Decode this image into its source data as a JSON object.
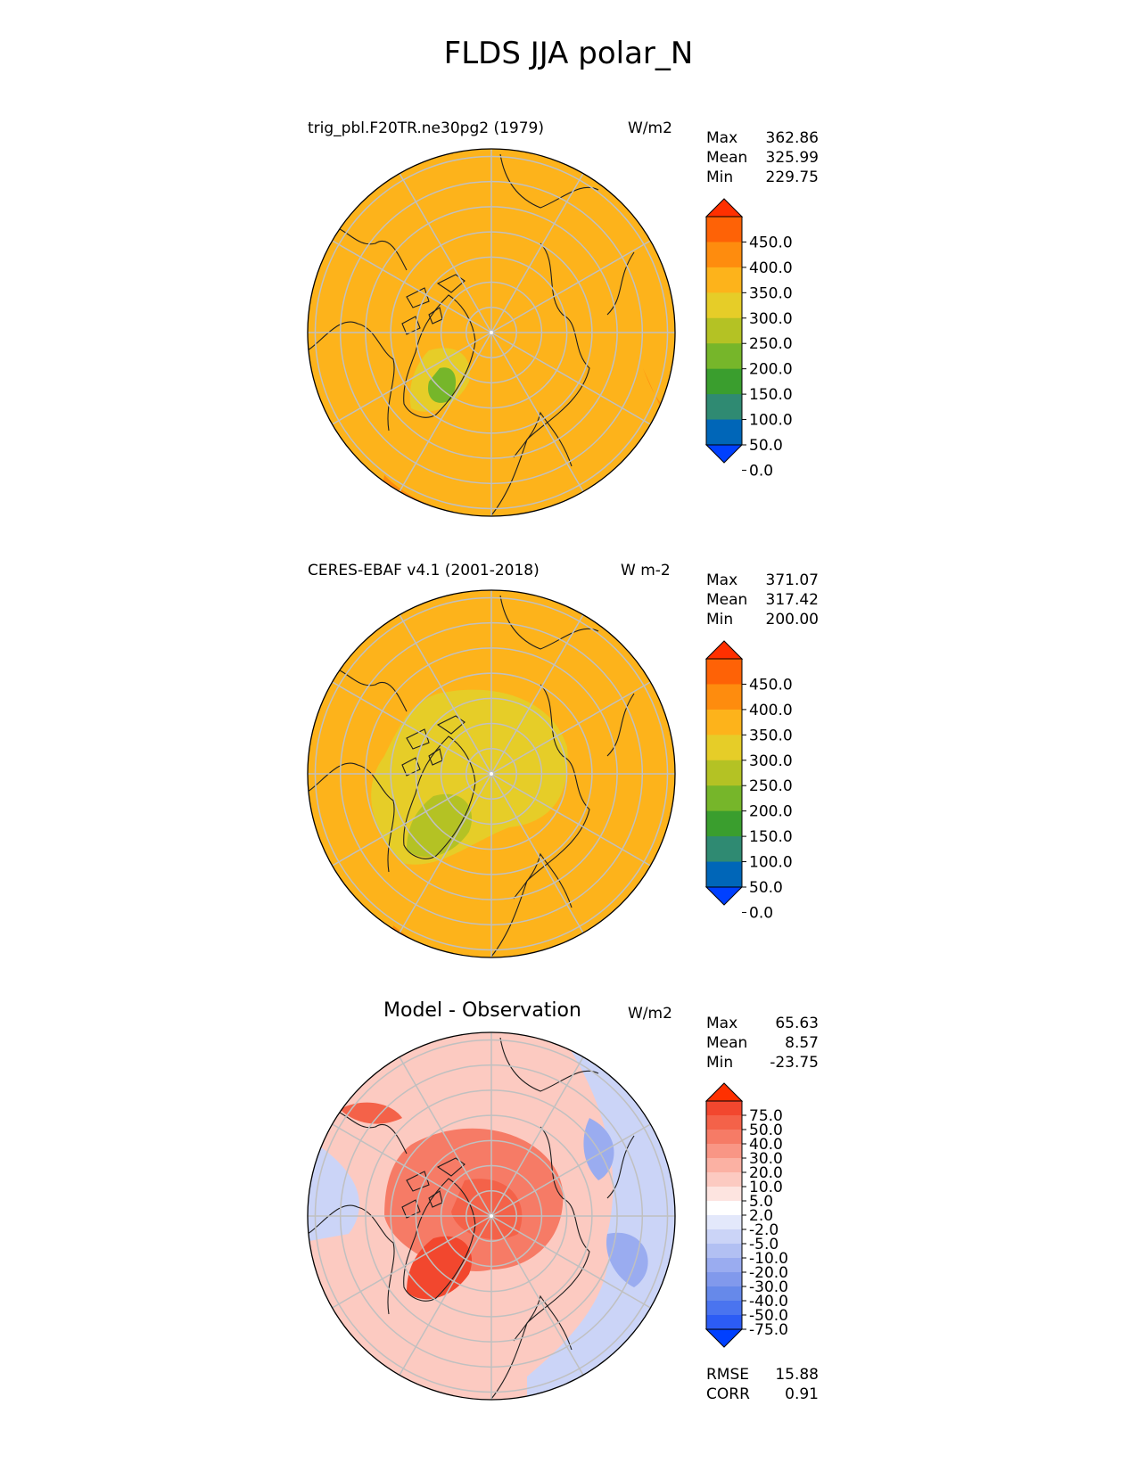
{
  "title": "FLDS JJA polar_N",
  "colors": {
    "abs_levels": [
      "#0040ff",
      "#0066b8",
      "#2f8a72",
      "#3a9e2e",
      "#76b62a",
      "#b4c224",
      "#e6cd28",
      "#fdb31b",
      "#fe8c0e",
      "#fe6206",
      "#ff3000"
    ],
    "diff_levels": [
      "#0040ff",
      "#2c5cf5",
      "#4a74ef",
      "#6689ea",
      "#8199ec",
      "#9aacf0",
      "#b2c0f3",
      "#cbd4f7",
      "#e3e8fb",
      "#ffffff",
      "#fde4e0",
      "#fccac1",
      "#fbb1a3",
      "#f99685",
      "#f67b66",
      "#f46249",
      "#f2472e",
      "#ff3000"
    ],
    "land_outline": "#1e1e1e",
    "grid": "#c0c0c0"
  },
  "panels": [
    {
      "title": "trig_pbl.F20TR.ne30pg2 (1979)",
      "units": "W/m2",
      "stats": [
        {
          "label": "Max",
          "value": "362.86"
        },
        {
          "label": "Mean",
          "value": "325.99"
        },
        {
          "label": "Min",
          "value": "229.75"
        }
      ],
      "colorbar_ticks": [
        "450.0",
        "400.0",
        "350.0",
        "300.0",
        "250.0",
        "200.0",
        "150.0",
        "100.0",
        "50.0",
        "0.0"
      ]
    },
    {
      "title": "CERES-EBAF v4.1 (2001-2018)",
      "units": "W m-2",
      "stats": [
        {
          "label": "Max",
          "value": "371.07"
        },
        {
          "label": "Mean",
          "value": "317.42"
        },
        {
          "label": "Min",
          "value": "200.00"
        }
      ],
      "colorbar_ticks": [
        "450.0",
        "400.0",
        "350.0",
        "300.0",
        "250.0",
        "200.0",
        "150.0",
        "100.0",
        "50.0",
        "0.0"
      ]
    },
    {
      "title": "Model - Observation",
      "units": "W/m2",
      "stats": [
        {
          "label": "Max",
          "value": "65.63"
        },
        {
          "label": "Mean",
          "value": "8.57"
        },
        {
          "label": "Min",
          "value": "-23.75"
        }
      ],
      "colorbar_ticks": [
        "75.0",
        "50.0",
        "40.0",
        "30.0",
        "20.0",
        "10.0",
        "5.0",
        "2.0",
        "-2.0",
        "-5.0",
        "-10.0",
        "-20.0",
        "-30.0",
        "-40.0",
        "-50.0",
        "-75.0"
      ],
      "metrics": [
        {
          "label": "RMSE",
          "value": "15.88"
        },
        {
          "label": "CORR",
          "value": "0.91"
        }
      ]
    }
  ],
  "chart_data": [
    {
      "type": "heatmap",
      "title": "trig_pbl.F20TR.ne30pg2 (1979)",
      "units": "W/m2",
      "projection": "north polar stereographic",
      "colorbar_levels": [
        0,
        50,
        100,
        150,
        200,
        250,
        300,
        350,
        400,
        450
      ],
      "colorbar_extend": "both",
      "stats": {
        "max": 362.86,
        "mean": 325.99,
        "min": 229.75
      },
      "field_summary": "mostly 300-350 W/m2; Greenland interior 200-300; lower-latitude edges 350-400"
    },
    {
      "type": "heatmap",
      "title": "CERES-EBAF v4.1 (2001-2018)",
      "units": "W m-2",
      "projection": "north polar stereographic",
      "colorbar_levels": [
        0,
        50,
        100,
        150,
        200,
        250,
        300,
        350,
        400,
        450
      ],
      "colorbar_extend": "both",
      "stats": {
        "max": 371.07,
        "mean": 317.42,
        "min": 200.0
      },
      "field_summary": "central Arctic 250-300 W/m2; Greenland 200-250; lower latitudes 300-350; Pacific edge 350-400"
    },
    {
      "type": "heatmap",
      "title": "Model - Observation",
      "units": "W/m2",
      "projection": "north polar stereographic",
      "colorbar_levels": [
        -75,
        -50,
        -40,
        -30,
        -20,
        -10,
        -5,
        -2,
        2,
        5,
        10,
        20,
        30,
        40,
        50,
        75
      ],
      "colorbar_extend": "both",
      "stats": {
        "max": 65.63,
        "mean": 8.57,
        "min": -23.75
      },
      "metrics": {
        "rmse": 15.88,
        "corr": 0.91
      },
      "field_summary": "positive (20-50) over central Arctic and Greenland; negative (-5 to -20) over North Pacific and parts of Eurasia"
    }
  ]
}
